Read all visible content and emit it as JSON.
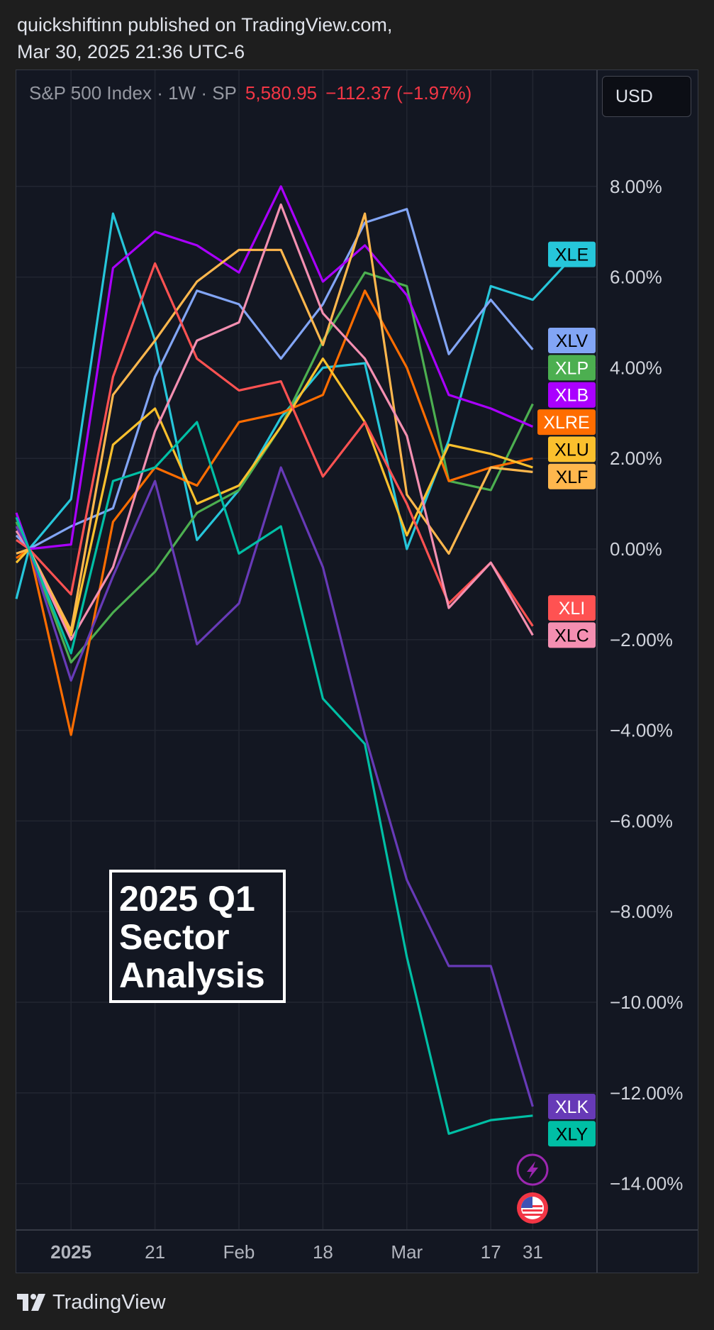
{
  "header": {
    "line1": "quickshiftinn published on TradingView.com,",
    "line2": "Mar 30, 2025 21:36 UTC-6"
  },
  "legend": {
    "symbol": "S&P 500 Index · 1W · SP",
    "value": "5,580.95",
    "change": "−112.37 (−1.97%)"
  },
  "currency_button": "USD",
  "annotation": [
    "2025 Q1",
    "Sector",
    "Analysis"
  ],
  "footer": {
    "brand": "TradingView"
  },
  "chart_data": {
    "type": "line",
    "x": [
      "Dec 23",
      "Dec 30",
      "Jan 6",
      "Jan 13",
      "Jan 20",
      "Jan 27",
      "Feb 3",
      "Feb 10",
      "Feb 18",
      "Feb 24",
      "Mar 3",
      "Mar 10",
      "Mar 17",
      "Mar 24"
    ],
    "ylim": [
      -15,
      10
    ],
    "y_ticks": [
      8,
      6,
      4,
      2,
      0,
      -2,
      -4,
      -6,
      -8,
      -10,
      -12,
      -14
    ],
    "y_tick_labels": [
      "8.00%",
      "6.00%",
      "4.00%",
      "2.00%",
      "0.00%",
      "−2.00%",
      "−4.00%",
      "−6.00%",
      "−8.00%",
      "−10.00%",
      "−12.00%",
      "−14.00%"
    ],
    "x_ticks": [
      {
        "label": "2025",
        "x": 1.0,
        "bold": true
      },
      {
        "label": "21",
        "x": 3.0
      },
      {
        "label": "Feb",
        "x": 5.0
      },
      {
        "label": "18",
        "x": 7.0
      },
      {
        "label": "Mar",
        "x": 9.0
      },
      {
        "label": "17",
        "x": 11.0
      },
      {
        "label": "31",
        "x": 12.0
      }
    ],
    "series": [
      {
        "name": "XLE",
        "color": "#26c6da",
        "values": [
          0,
          1.1,
          7.4,
          4.6,
          0.2,
          1.3,
          2.9,
          4.0,
          4.1,
          0.0,
          2.4,
          5.8,
          5.5,
          6.5
        ],
        "leadIn": -1.1
      },
      {
        "name": "XLV",
        "color": "#82a5f5",
        "values": [
          0,
          0.5,
          0.9,
          3.8,
          5.7,
          5.4,
          4.2,
          5.4,
          7.2,
          7.5,
          4.3,
          5.5,
          4.4,
          4.4
        ],
        "leadIn": 0.3
      },
      {
        "name": "XLP",
        "color": "#4caf50",
        "values": [
          0,
          -2.5,
          -1.4,
          -0.5,
          0.8,
          1.3,
          2.7,
          4.6,
          6.1,
          5.8,
          1.5,
          1.3,
          3.2,
          3.2
        ],
        "leadIn": 0.6
      },
      {
        "name": "XLB",
        "color": "#aa00ff",
        "values": [
          0,
          0.1,
          6.2,
          7.0,
          6.7,
          6.1,
          8.0,
          5.9,
          6.7,
          5.6,
          3.4,
          3.1,
          2.7,
          2.7
        ],
        "leadIn": 0.8
      },
      {
        "name": "XLRE",
        "color": "#ff6d00",
        "values": [
          0,
          -4.1,
          0.6,
          1.8,
          1.4,
          2.8,
          3.0,
          3.4,
          5.7,
          4.0,
          1.5,
          1.8,
          2.0,
          2.0
        ],
        "leadIn": -0.2
      },
      {
        "name": "XLU",
        "color": "#fbc02d",
        "values": [
          0,
          -1.9,
          2.3,
          3.1,
          1.0,
          1.4,
          2.7,
          4.2,
          2.8,
          0.3,
          2.3,
          2.1,
          1.8,
          1.8
        ],
        "leadIn": -0.3
      },
      {
        "name": "XLF",
        "color": "#ffb74d",
        "values": [
          0,
          -1.8,
          3.4,
          4.6,
          5.9,
          6.6,
          6.6,
          4.5,
          7.4,
          1.2,
          -0.1,
          1.8,
          1.7,
          1.7
        ],
        "leadIn": -0.1
      },
      {
        "name": "XLI",
        "color": "#ff5252",
        "values": [
          0,
          -1.0,
          3.8,
          6.3,
          4.2,
          3.5,
          3.7,
          1.6,
          2.8,
          1.0,
          -1.2,
          -0.3,
          -1.7,
          -1.7
        ],
        "leadIn": 0.2
      },
      {
        "name": "XLC",
        "color": "#f48fb1",
        "values": [
          0,
          -2.0,
          -0.4,
          2.6,
          4.6,
          5.0,
          7.6,
          5.2,
          4.2,
          2.5,
          -1.3,
          -0.3,
          -1.9,
          -1.9
        ],
        "leadIn": 0.4
      },
      {
        "name": "XLK",
        "color": "#673ab7",
        "values": [
          0,
          -2.9,
          -0.6,
          1.5,
          -2.1,
          -1.2,
          1.8,
          -0.4,
          -4.1,
          -7.3,
          -9.2,
          -9.2,
          -12.3,
          -12.3
        ],
        "leadIn": 0.5
      },
      {
        "name": "XLY",
        "color": "#00bfa5",
        "values": [
          0,
          -2.3,
          1.5,
          1.8,
          2.8,
          -0.1,
          0.5,
          -3.3,
          -4.3,
          -9.0,
          -12.9,
          -12.6,
          -12.5,
          -12.5
        ],
        "leadIn": 0.7
      }
    ],
    "price_label_order": [
      "XLE",
      "XLV",
      "XLP",
      "XLB",
      "XLRE",
      "XLU",
      "XLF",
      "XLI",
      "XLC",
      "XLK",
      "XLY"
    ],
    "price_label_y": [
      6.5,
      4.6,
      4.0,
      3.4,
      2.8,
      2.2,
      1.6,
      -1.3,
      -1.9,
      -12.3,
      -12.9
    ],
    "price_label_text_colors": {
      "XLE": "#000000",
      "XLV": "#000000",
      "XLP": "#ffffff",
      "XLB": "#ffffff",
      "XLRE": "#ffffff",
      "XLU": "#000000",
      "XLF": "#000000",
      "XLI": "#ffffff",
      "XLC": "#000000",
      "XLK": "#ffffff",
      "XLY": "#000000"
    }
  }
}
